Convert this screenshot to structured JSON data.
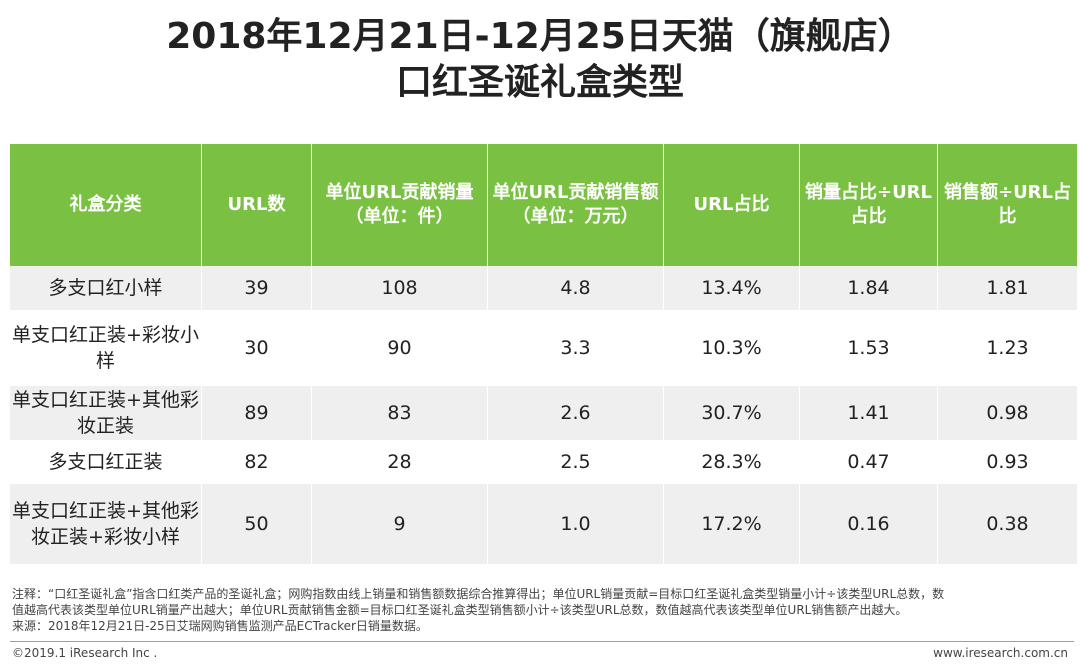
{
  "title": {
    "line1": "2018年12月21日-12月25日天猫（旗舰店）",
    "line2": "口红圣诞礼盒类型"
  },
  "table": {
    "headers": [
      "礼盒分类",
      "URL数",
      "单位URL贡献销量（单位：件）",
      "单位URL贡献销售额（单位：万元）",
      "URL占比",
      "销量占比÷URL占比",
      "销售额÷URL占比"
    ],
    "rows": [
      [
        "多支口红小样",
        "39",
        "108",
        "4.8",
        "13.4%",
        "1.84",
        "1.81"
      ],
      [
        "单支口红正装+彩妆小样",
        "30",
        "90",
        "3.3",
        "10.3%",
        "1.53",
        "1.23"
      ],
      [
        "单支口红正装+其他彩妆正装",
        "89",
        "83",
        "2.6",
        "30.7%",
        "1.41",
        "0.98"
      ],
      [
        "多支口红正装",
        "82",
        "28",
        "2.5",
        "28.3%",
        "0.47",
        "0.93"
      ],
      [
        "单支口红正装+其他彩妆正装+彩妆小样",
        "50",
        "9",
        "1.0",
        "17.2%",
        "0.16",
        "0.38"
      ]
    ]
  },
  "notes": {
    "line1": "注释：“口红圣诞礼盒”指含口红类产品的圣诞礼盒；网购指数由线上销量和销售额数据综合推算得出；单位URL销量贡献=目标口红圣诞礼盒类型销量小计÷该类型URL总数，数",
    "line2": "值越高代表该类型单位URL销量产出越大；单位URL贡献销售金额=目标口红圣诞礼盒类型销售额小计÷该类型URL总数，数值越高代表该类型单位URL销售额产出越大。",
    "line3": "来源：2018年12月21日-25日艾瑞网购销售监测产品ECTracker日销量数据。"
  },
  "footer": {
    "copyright": "©2019.1 iResearch Inc .",
    "website": "www.iresearch.com.cn"
  },
  "colors": {
    "header_bg": "#7ac043",
    "row_alt": "#efefef"
  }
}
